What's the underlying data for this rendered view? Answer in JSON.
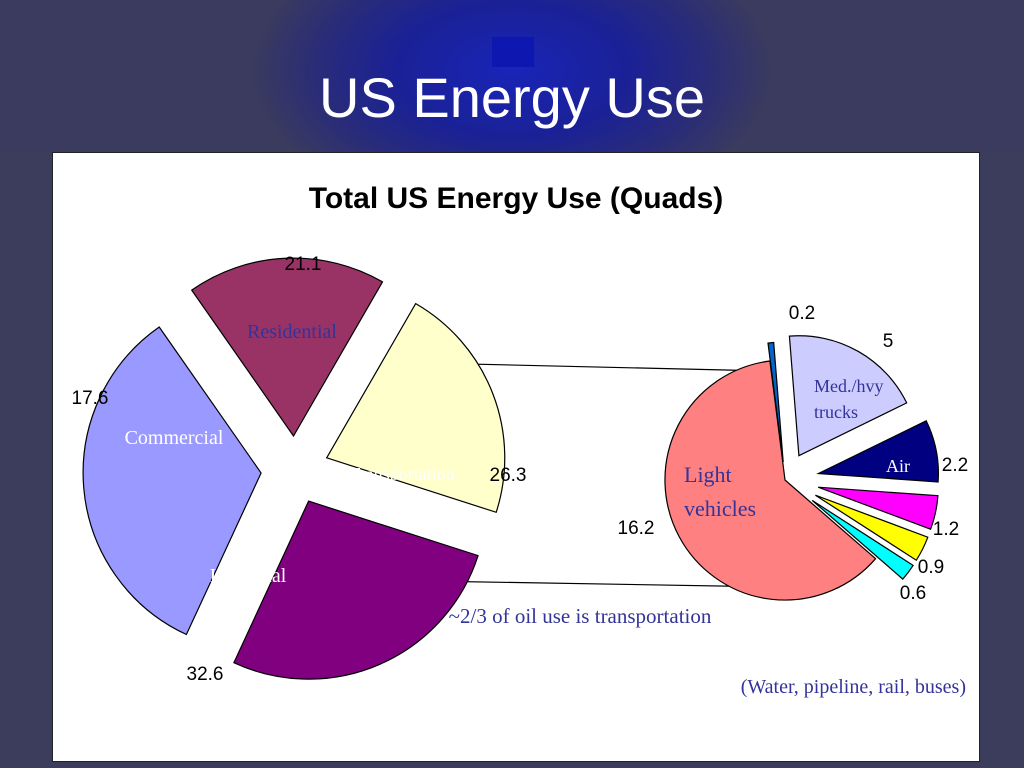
{
  "slide": {
    "title": "US Energy Use"
  },
  "colors": {
    "residential": "#ffffcc",
    "commercial": "#993366",
    "industrial": "#9999ff",
    "transportation": "#800080",
    "light_vehicles": "#ff8080",
    "other": "#0066cc",
    "trucks": "#ccccff",
    "air": "#000080",
    "magenta": "#ff00ff",
    "yellow": "#ffff00",
    "cyan": "#00ffff",
    "frame_text": "#333399"
  },
  "chart_data": [
    {
      "type": "pie",
      "title": "Total US Energy Use (Quads)",
      "slices": [
        {
          "key": "residential",
          "label": "Residential",
          "value": 21.1,
          "value_label": "21.1"
        },
        {
          "key": "transportation",
          "label": "Transportation",
          "value": 26.3,
          "value_label": "26.3"
        },
        {
          "key": "industrial",
          "label": "Industrial",
          "value": 32.6,
          "value_label": "32.6"
        },
        {
          "key": "commercial",
          "label": "Commercial",
          "value": 17.6,
          "value_label": "17.6"
        }
      ]
    },
    {
      "type": "pie",
      "title": "",
      "slices": [
        {
          "key": "light_vehicles",
          "label": "Light vehicles",
          "value": 16.2,
          "value_label": "16.2"
        },
        {
          "key": "other",
          "label": "",
          "value": 0.2,
          "value_label": "0.2"
        },
        {
          "key": "trucks",
          "label": "Med./hvy trucks",
          "value": 5,
          "value_label": "5"
        },
        {
          "key": "air",
          "label": "Air",
          "value": 2.2,
          "value_label": "2.2"
        },
        {
          "key": "magenta",
          "label": "",
          "value": 1.2,
          "value_label": "1.2"
        },
        {
          "key": "yellow",
          "label": "",
          "value": 0.9,
          "value_label": "0.9"
        },
        {
          "key": "cyan",
          "label": "",
          "value": 0.6,
          "value_label": "0.6"
        }
      ]
    }
  ],
  "annotations": {
    "oil_note": "~2/3 of oil use is transportation",
    "other_note": "(Water, pipeline, rail, buses)"
  }
}
